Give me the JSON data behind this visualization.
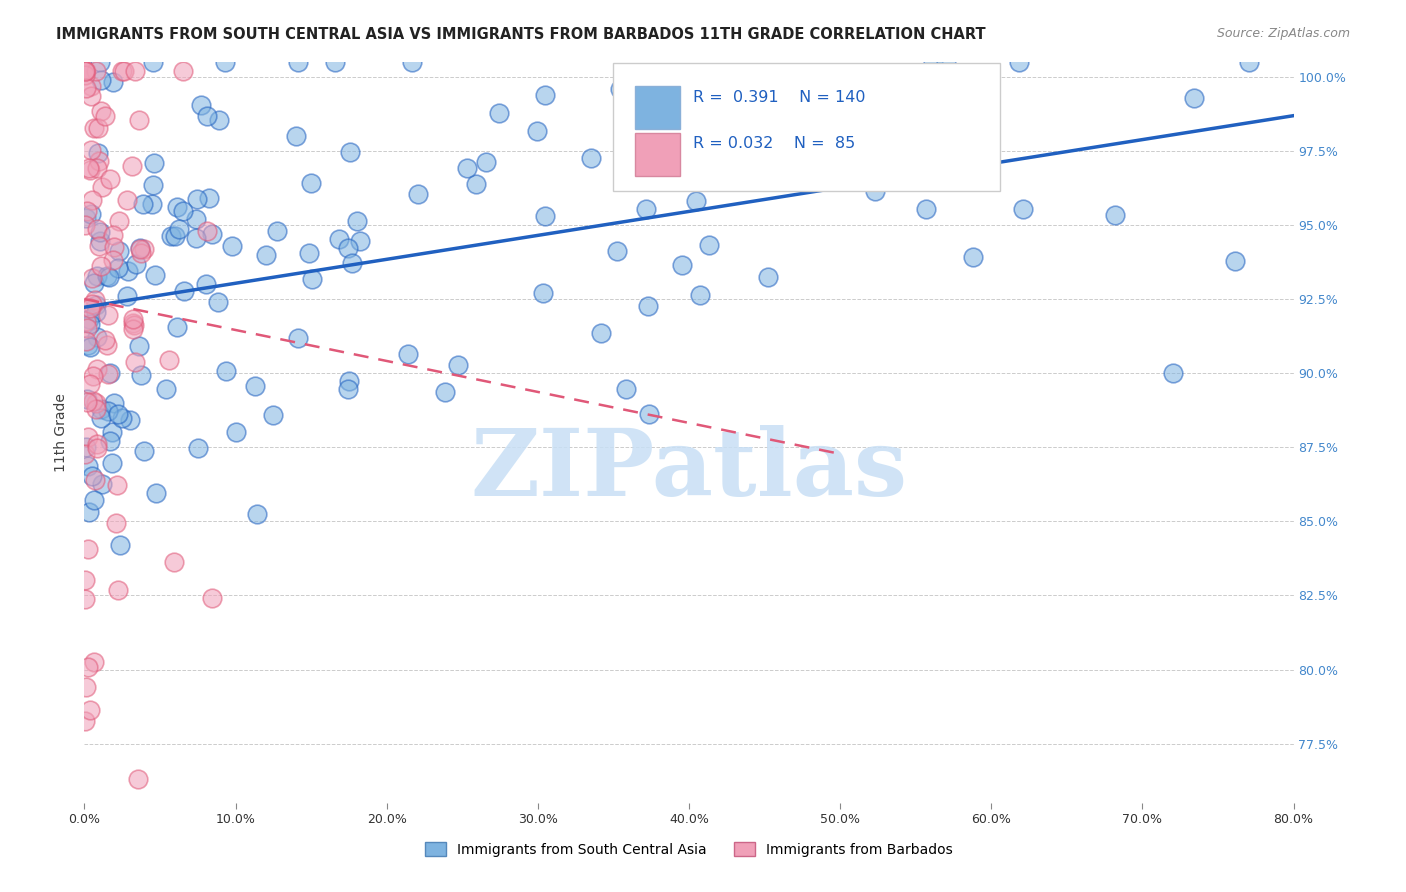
{
  "title": "IMMIGRANTS FROM SOUTH CENTRAL ASIA VS IMMIGRANTS FROM BARBADOS 11TH GRADE CORRELATION CHART",
  "source": "Source: ZipAtlas.com",
  "ylabel": "11th Grade",
  "legend_label1": "Immigrants from South Central Asia",
  "legend_label2": "Immigrants from Barbados",
  "R1": 0.391,
  "N1": 140,
  "R2": 0.032,
  "N2": 85,
  "xlim": [
    0.0,
    0.8
  ],
  "ylim": [
    0.755,
    1.005
  ],
  "yticks": [
    0.775,
    0.8,
    0.825,
    0.85,
    0.875,
    0.9,
    0.925,
    0.95,
    0.975,
    1.0
  ],
  "ytick_labels": [
    "77.5%",
    "80.0%",
    "82.5%",
    "85.0%",
    "87.5%",
    "90.0%",
    "92.5%",
    "95.0%",
    "97.5%",
    "100.0%"
  ],
  "xticks": [
    0.0,
    0.1,
    0.2,
    0.3,
    0.4,
    0.5,
    0.6,
    0.7,
    0.8
  ],
  "xtick_labels": [
    "0.0%",
    "10.0%",
    "20.0%",
    "30.0%",
    "40.0%",
    "50.0%",
    "60.0%",
    "70.0%",
    "80.0%"
  ],
  "color_blue": "#7eb3e0",
  "color_pink": "#f0a0b8",
  "color_line_blue": "#2060c0",
  "color_line_pink": "#e05878",
  "color_text_blue": "#2060c0",
  "watermark_text": "ZIPatlas",
  "watermark_color": "#c8dff5",
  "background_color": "#ffffff",
  "tick_color_right": "#4488cc"
}
